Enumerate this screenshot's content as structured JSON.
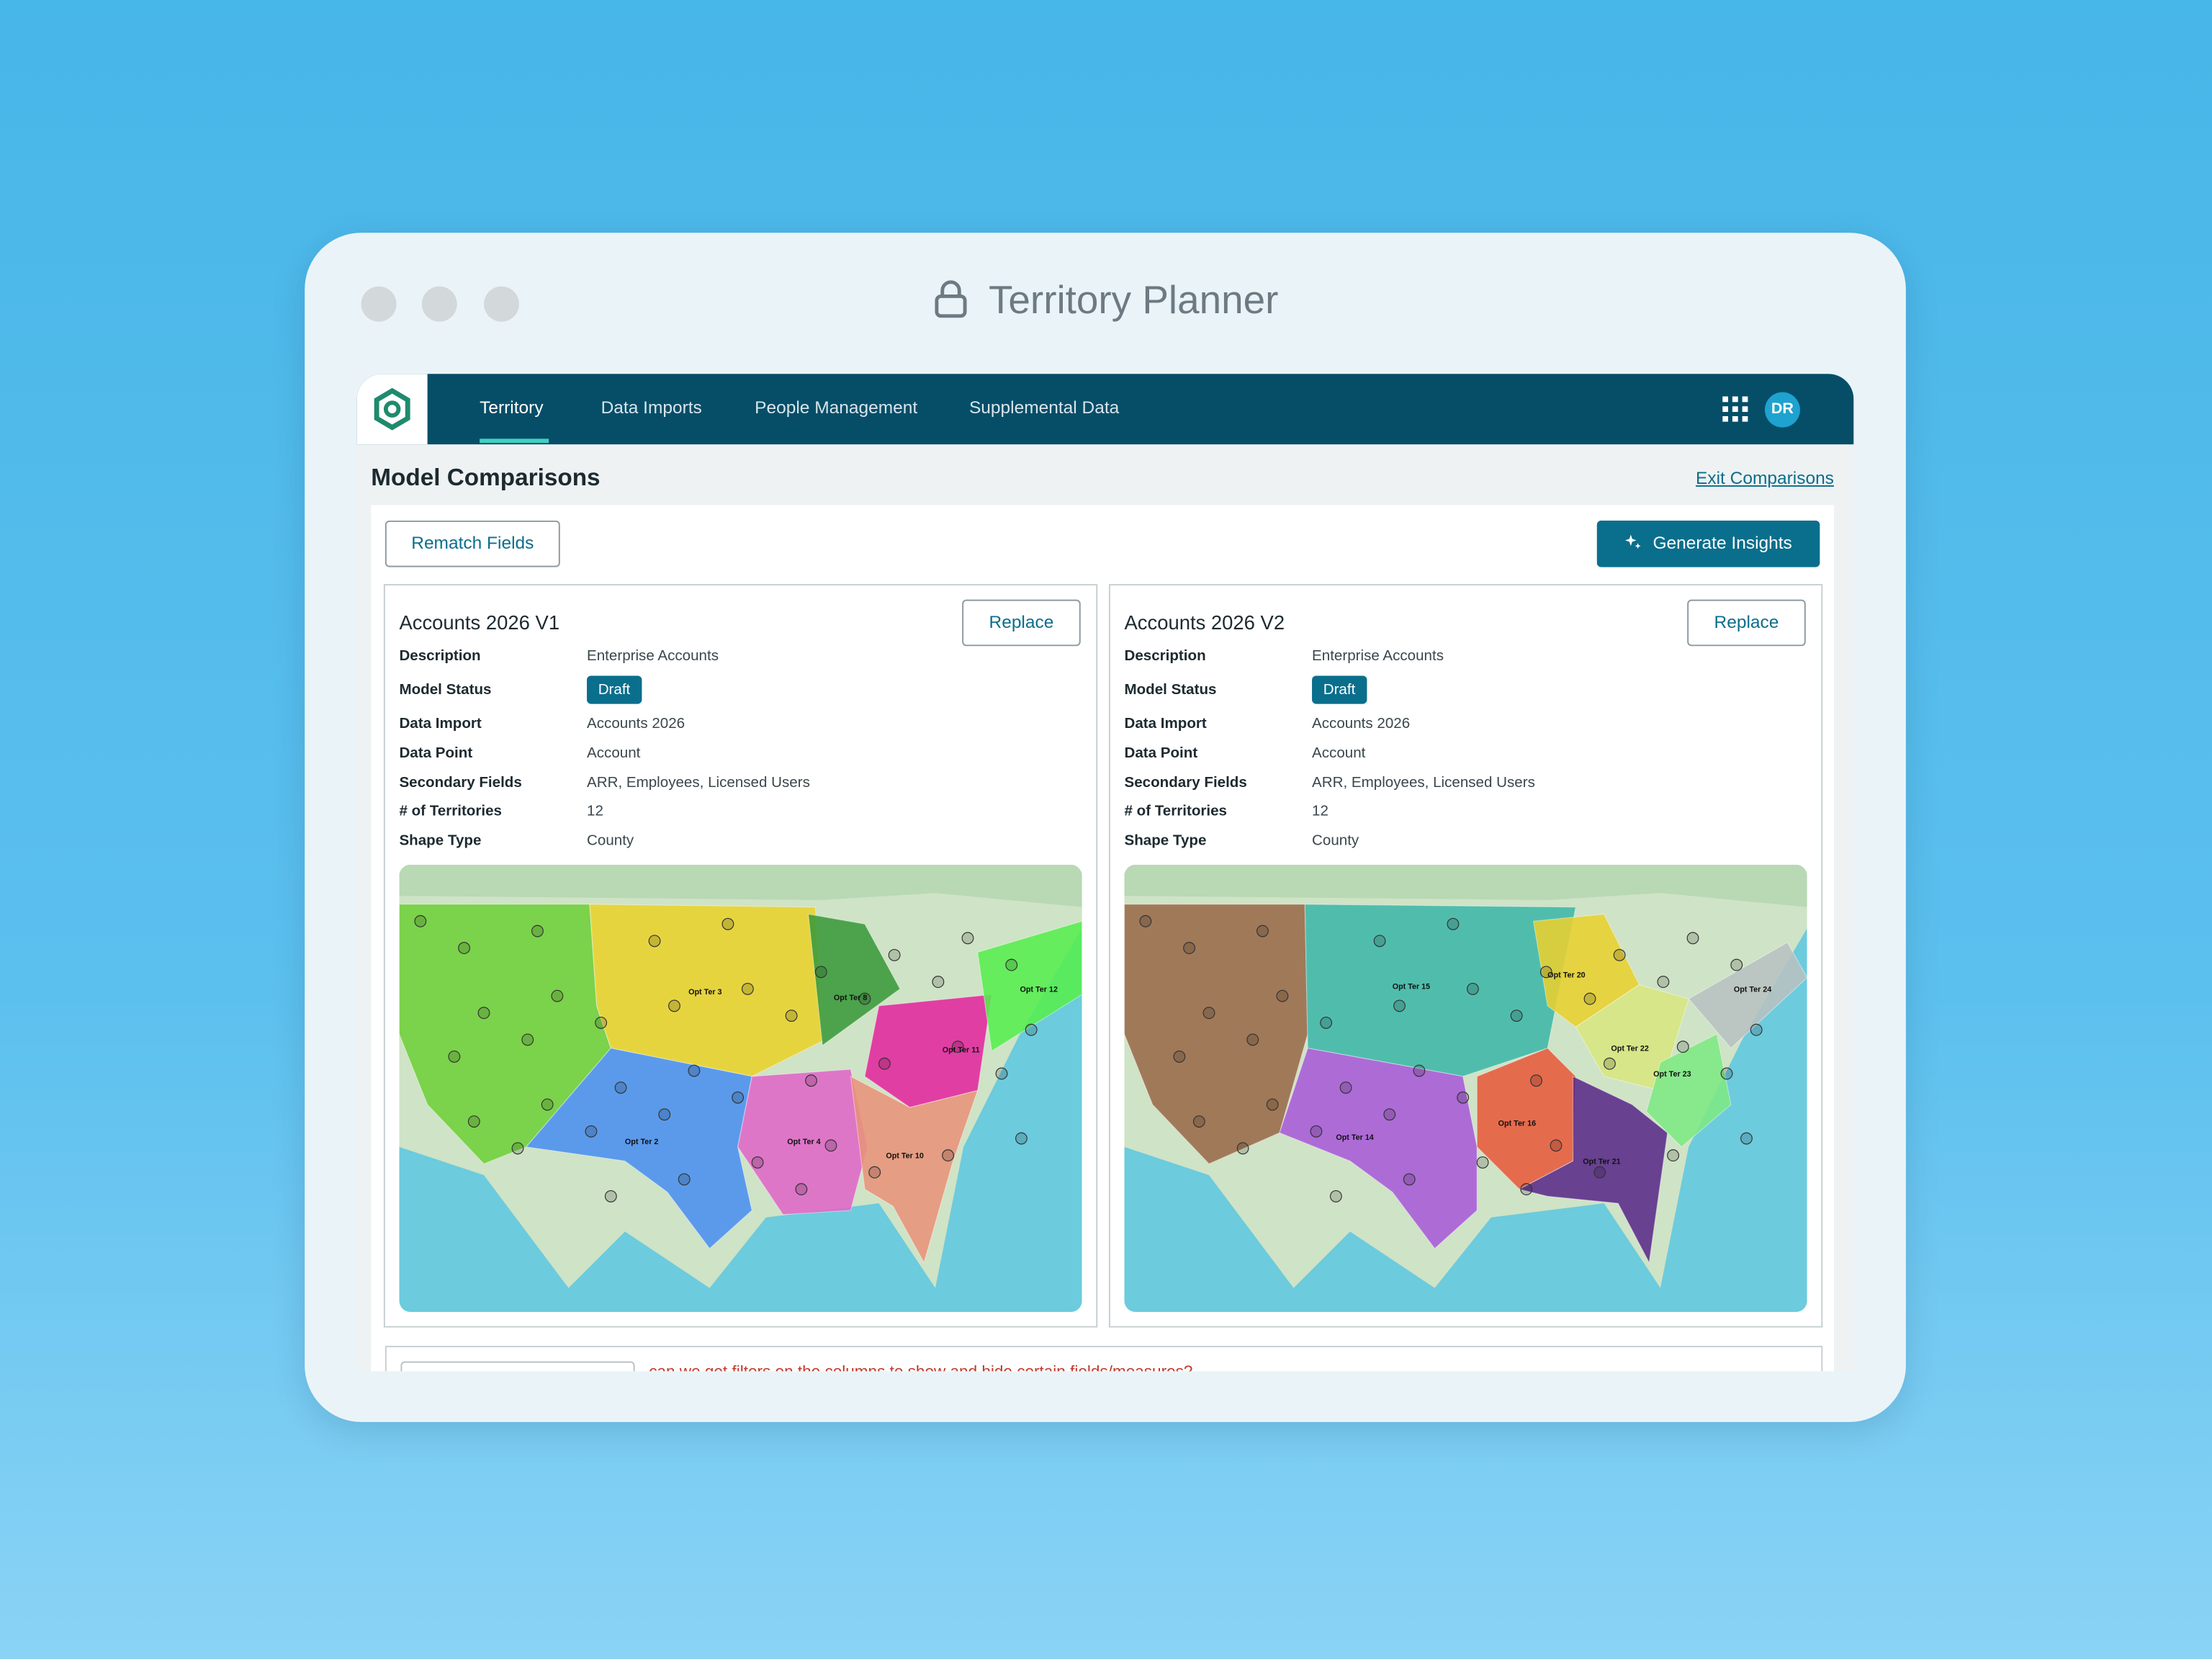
{
  "window": {
    "title": "Territory Planner"
  },
  "nav": {
    "items": [
      "Territory",
      "Data Imports",
      "People Management",
      "Supplemental Data"
    ],
    "avatar": "DR"
  },
  "page": {
    "title": "Model Comparisons",
    "exit_link": "Exit Comparisons"
  },
  "toolbar": {
    "rematch": "Rematch Fields",
    "generate": "Generate Insights"
  },
  "models": [
    {
      "name": "Accounts 2026 V1",
      "replace": "Replace",
      "fields": [
        {
          "label": "Description",
          "value": "Enterprise Accounts"
        },
        {
          "label": "Model Status",
          "value": "Draft"
        },
        {
          "label": "Data Import",
          "value": "Accounts 2026"
        },
        {
          "label": "Data Point",
          "value": "Account"
        },
        {
          "label": "Secondary Fields",
          "value": "ARR, Employees, Licensed Users"
        },
        {
          "label": "# of Territories",
          "value": "12"
        },
        {
          "label": "Shape Type",
          "value": "County"
        }
      ],
      "map_labels": [
        "Opt Ter 3",
        "Opt Ter 8",
        "Opt Ter 12",
        "Opt Ter 2",
        "Opt Ter 4",
        "Opt Ter 10",
        "Opt Ter 11"
      ]
    },
    {
      "name": "Accounts 2026 V2",
      "replace": "Replace",
      "fields": [
        {
          "label": "Description",
          "value": "Enterprise Accounts"
        },
        {
          "label": "Model Status",
          "value": "Draft"
        },
        {
          "label": "Data Import",
          "value": "Accounts 2026"
        },
        {
          "label": "Data Point",
          "value": "Account"
        },
        {
          "label": "Secondary Fields",
          "value": "ARR, Employees, Licensed Users"
        },
        {
          "label": "# of Territories",
          "value": "12"
        },
        {
          "label": "Shape Type",
          "value": "County"
        }
      ],
      "map_labels": [
        "Opt Ter 15",
        "Opt Ter 20",
        "Opt Ter 24",
        "Opt Ter 22",
        "Opt Ter 23",
        "Opt Ter 14",
        "Opt Ter 16",
        "Opt Ter 21"
      ]
    }
  ],
  "comment": {
    "text": "can we get filters on the columns to show and hide certain fields/measures?"
  }
}
